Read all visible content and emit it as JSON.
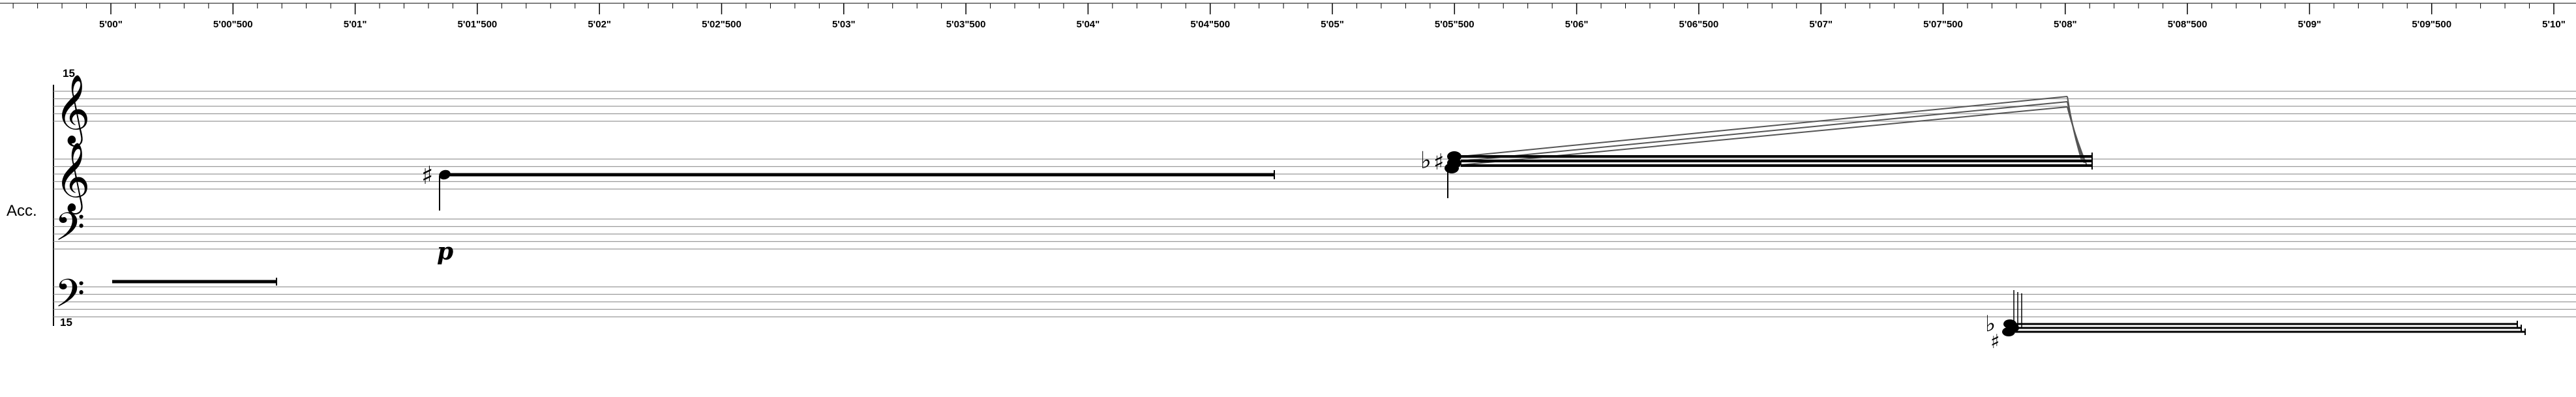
{
  "timeline": {
    "ticks": [
      "5'00\"",
      "5'00\"500",
      "5'01\"",
      "5'01\"500",
      "5'02\"",
      "5'02\"500",
      "5'03\"",
      "5'03\"500",
      "5'04\"",
      "5'04\"500",
      "5'05\"",
      "5'05\"500",
      "5'06\"",
      "5'06\"500",
      "5'07\"",
      "5'07\"500",
      "5'08\"",
      "5'08\"500",
      "5'09\"",
      "5'09\"500",
      "5'10\""
    ]
  },
  "instrument": {
    "name": "Acc."
  },
  "ottava": {
    "top": "15",
    "bottom": "15"
  },
  "clefs": {
    "treble": "𝄞",
    "bass": "𝄢"
  },
  "accidentals": {
    "sharp": "♯",
    "flat": "♭"
  },
  "dynamics": {
    "p": "p"
  }
}
